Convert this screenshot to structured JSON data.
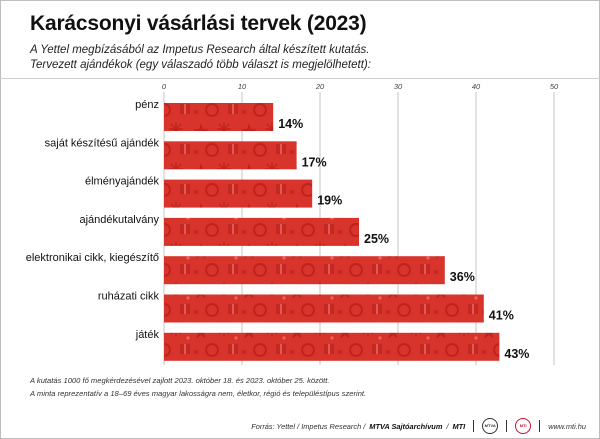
{
  "header": {
    "title": "Karácsonyi vásárlási tervek (2023)",
    "subtitle1": "A Yettel megbízásából az Impetus Research által készített kutatás.",
    "subtitle2": "Tervezett ajándékok (egy válaszadó több választ is megjelölhetett):"
  },
  "chart_data": {
    "type": "bar",
    "orientation": "horizontal",
    "title": "Karácsonyi vásárlási tervek (2023)",
    "categories": [
      "pénz",
      "saját készítésű ajándék",
      "élményajándék",
      "ajándékutalvány",
      "elektronikai cikk, kiegészítő",
      "ruházati cikk",
      "játék"
    ],
    "values": [
      14,
      17,
      19,
      25,
      36,
      41,
      43
    ],
    "value_labels": [
      "14%",
      "17%",
      "19%",
      "25%",
      "36%",
      "41%",
      "43%"
    ],
    "xlim": [
      0,
      50
    ],
    "xticks": [
      "0",
      "10",
      "20",
      "30",
      "40",
      "50"
    ],
    "grid": true,
    "bar_color": "#d8342c",
    "pattern_color": "#b81e1a"
  },
  "footnotes": {
    "line1": "A kutatás 1000 fő megkérdezésével zajlott 2023. október 18. és 2023. október 25. között.",
    "line2": "A minta reprezentatív a 18–69 éves magyar lakosságra nem, életkor, régió és településtípus szerint."
  },
  "source": {
    "prefix": "Forrás: Yettel / Impetus Research /",
    "agency": "MTVA Sajtóarchívum",
    "mti": "MTI",
    "logo1": "MTVA",
    "logo2": "MTI",
    "url": "www.mti.hu"
  }
}
